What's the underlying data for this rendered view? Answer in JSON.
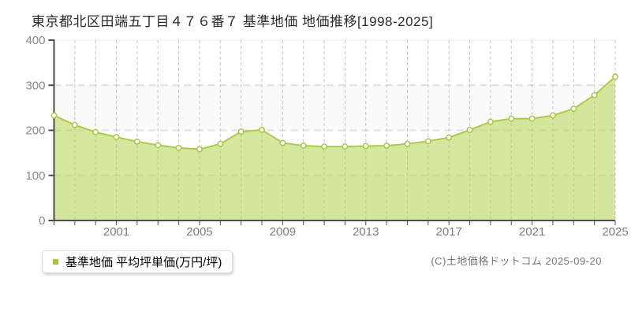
{
  "title": "東京都北区田端五丁目４７６番７ 基準地価 地価推移[1998-2025]",
  "legend": {
    "label": "基準地価 平均坪単価(万円/坪)",
    "marker_color": "#a8c824"
  },
  "footer": {
    "copyright": "(C)土地価格ドットコム 2025-09-20"
  },
  "colors": {
    "line": "#aeca4a",
    "fill": "#b5d351",
    "marker_fill": "#ffffff",
    "marker_stroke": "#a9c645",
    "axis": "#4d4d4d",
    "grid_vertical": "#c6c6c6",
    "grid_horizontal": "#e0e0e0",
    "plot_top_border": "#ececec",
    "band_even": "#ffffff",
    "band_odd": "#fafafa",
    "y_label": "#898989",
    "x_label": "#7d7d7d"
  },
  "chart_data": {
    "type": "area",
    "title": "東京都北区田端五丁目４７６番７ 基準地価 地価推移[1998-2025]",
    "years": [
      1998,
      1999,
      2000,
      2001,
      2002,
      2003,
      2004,
      2005,
      2006,
      2007,
      2008,
      2009,
      2010,
      2011,
      2012,
      2013,
      2014,
      2015,
      2016,
      2017,
      2018,
      2019,
      2020,
      2021,
      2022,
      2023,
      2024,
      2025
    ],
    "series": [
      {
        "name": "基準地価 平均坪単価(万円/坪)",
        "values": [
          233,
          212,
          196,
          185,
          175,
          167,
          161,
          158,
          170,
          197,
          201,
          172,
          166,
          164,
          164,
          165,
          166,
          170,
          176,
          184,
          201,
          219,
          226,
          226,
          233,
          248,
          278,
          319
        ]
      }
    ],
    "ylabel": "平均坪単価(万円/坪)",
    "xlabel": "",
    "ylim": [
      0,
      400
    ],
    "yticks": [
      0,
      100,
      200,
      300,
      400
    ],
    "xtick_labels": [
      "2001",
      "2005",
      "2009",
      "2013",
      "2017",
      "2021",
      "2025"
    ],
    "grid": true,
    "legend_position": "bottom-left"
  }
}
